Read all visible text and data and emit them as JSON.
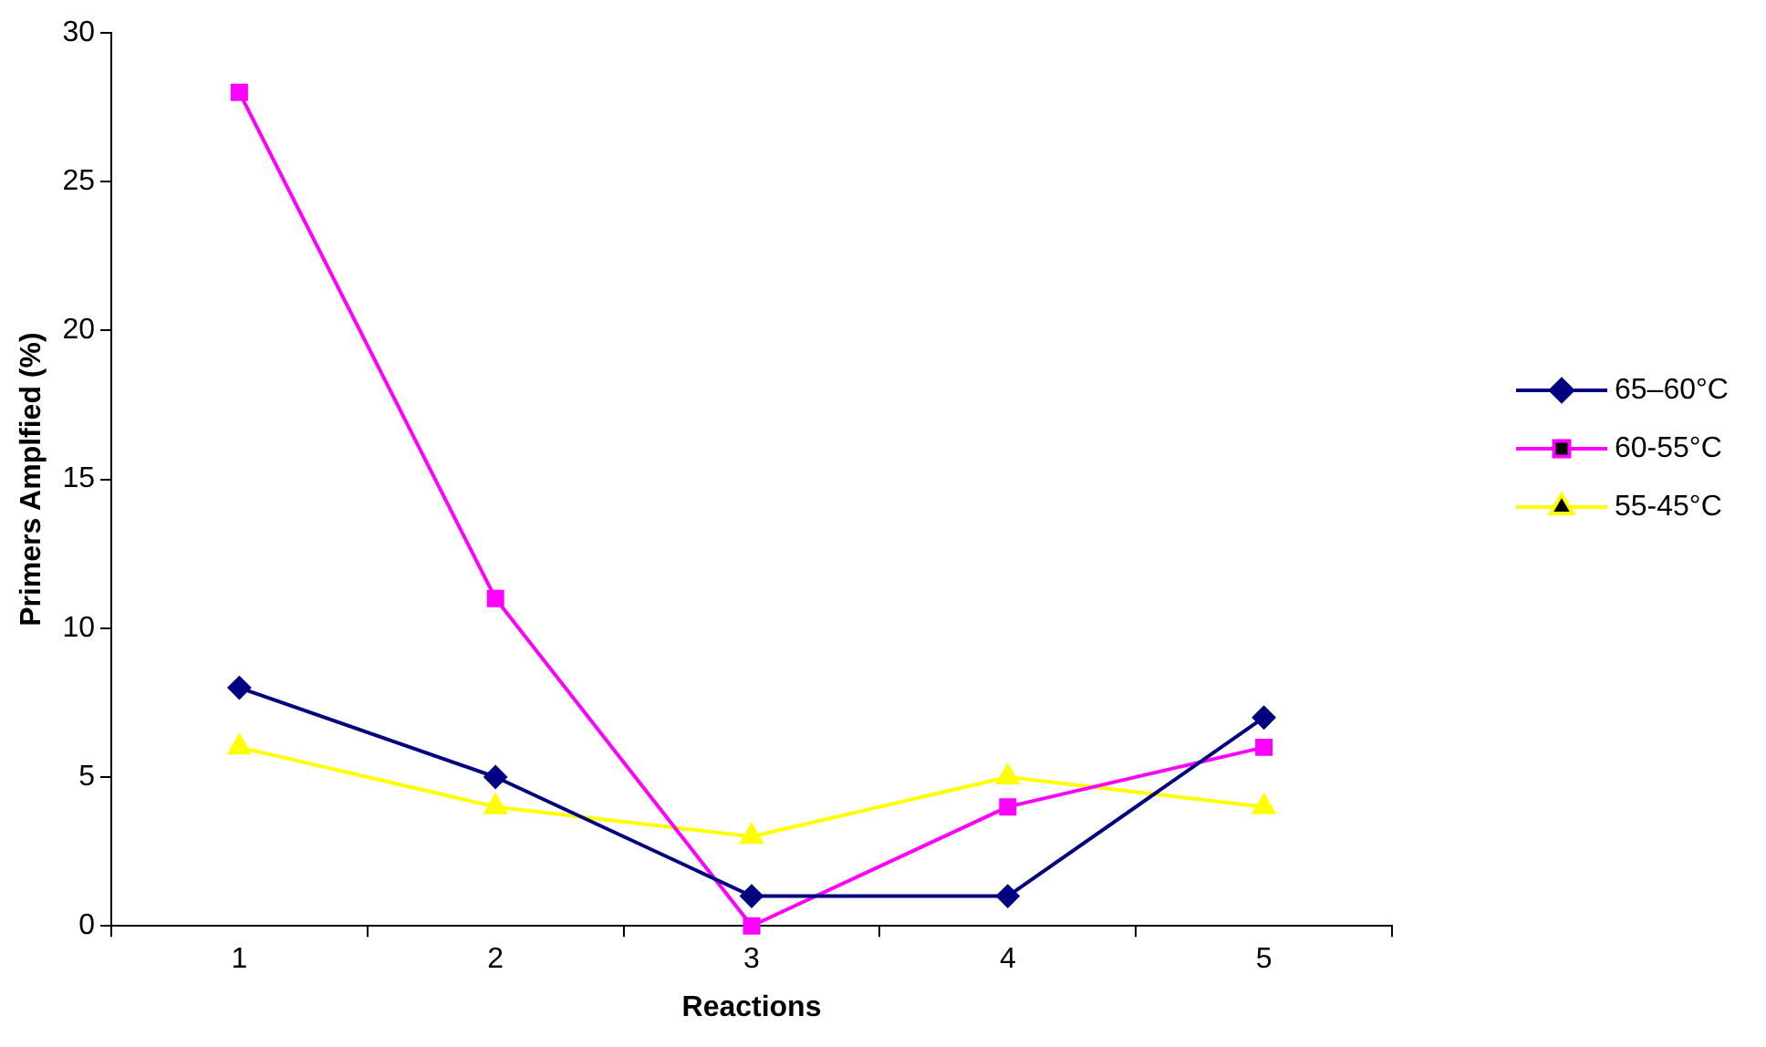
{
  "chart_data": {
    "type": "line",
    "xlabel": "Reactions",
    "ylabel": "Primers Amplfied (%)",
    "categories": [
      "1",
      "2",
      "3",
      "4",
      "5"
    ],
    "series": [
      {
        "name": "65–60°C",
        "color": "#000080",
        "marker": "diamond",
        "values": [
          8,
          5,
          1,
          1,
          7
        ]
      },
      {
        "name": "60-55°C",
        "color": "#ff00ff",
        "marker": "square",
        "values": [
          28,
          11,
          0,
          4,
          6
        ]
      },
      {
        "name": "55-45°C",
        "color": "#ffff00",
        "marker": "triangle",
        "values": [
          6,
          4,
          3,
          5,
          4
        ]
      }
    ],
    "ylim": [
      0,
      30
    ],
    "yticks": [
      0,
      5,
      10,
      15,
      20,
      25,
      30
    ],
    "grid": false,
    "legend": "right"
  }
}
